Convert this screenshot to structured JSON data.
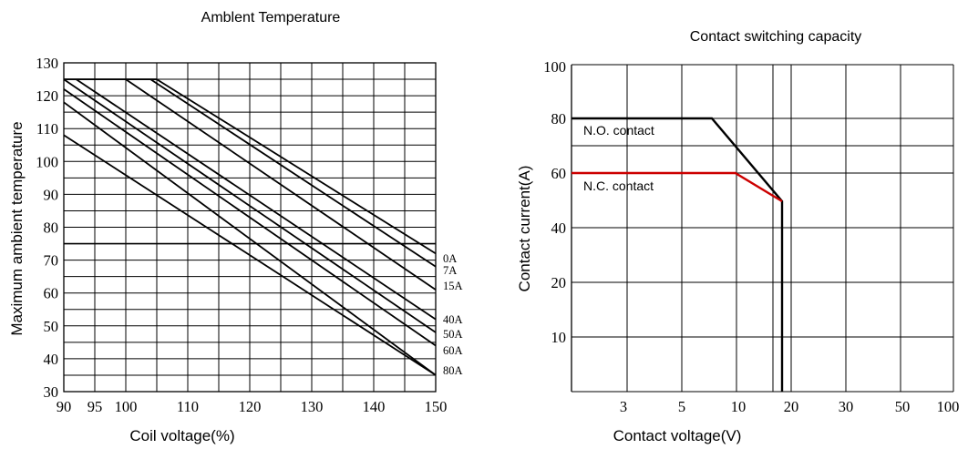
{
  "chart_data": [
    {
      "type": "line",
      "title": "Amblent Temperature",
      "xlabel": "Coil voltage(%)",
      "ylabel": "Maximum ambient temperature",
      "xlim": [
        90,
        150
      ],
      "ylim": [
        30,
        130
      ],
      "x_ticks": [
        90,
        95,
        100,
        110,
        120,
        130,
        140,
        150
      ],
      "y_ticks": [
        30,
        40,
        50,
        60,
        70,
        80,
        90,
        100,
        110,
        120,
        130
      ],
      "grid": true,
      "reference_line_y": 75,
      "line_color": "#000000",
      "series": [
        {
          "name": "0A",
          "points": [
            [
              105,
              125
            ],
            [
              150,
              72
            ]
          ]
        },
        {
          "name": "7A",
          "points": [
            [
              104,
              125
            ],
            [
              150,
              68
            ]
          ]
        },
        {
          "name": "15A",
          "points": [
            [
              100,
              125
            ],
            [
              150,
              61
            ]
          ]
        },
        {
          "name": "40A",
          "points": [
            [
              92,
              125
            ],
            [
              150,
              52
            ]
          ]
        },
        {
          "name": "50A",
          "points": [
            [
              90,
              125
            ],
            [
              150,
              48
            ]
          ]
        },
        {
          "name": "60A",
          "points": [
            [
              90,
              122
            ],
            [
              150,
              44
            ]
          ]
        },
        {
          "name": "80A",
          "points": [
            [
              90,
              118
            ],
            [
              150,
              35
            ]
          ]
        },
        {
          "name": "",
          "points": [
            [
              90,
              108
            ],
            [
              150,
              35
            ]
          ]
        }
      ]
    },
    {
      "type": "line",
      "title": "Contact switching capacity",
      "xlabel": "Contact voltage(V)",
      "ylabel": "Contact current(A)",
      "x_ticks": [
        "3",
        "5",
        "10",
        "20",
        "30",
        "50",
        "100"
      ],
      "y_ticks": [
        "10",
        "20",
        "40",
        "60",
        "80",
        "100"
      ],
      "grid": true,
      "series": [
        {
          "name": "N.O. contact",
          "color": "#000000",
          "points": [
            [
              0,
              80
            ],
            [
              12,
              80
            ],
            [
              18,
              50
            ],
            [
              18,
              0
            ]
          ]
        },
        {
          "name": "N.C. contact",
          "color": "#cc0000",
          "points": [
            [
              0,
              60
            ],
            [
              14,
              60
            ],
            [
              18,
              50
            ]
          ]
        }
      ],
      "annotations": [
        "N.O. contact",
        "N.C. contact"
      ]
    }
  ]
}
